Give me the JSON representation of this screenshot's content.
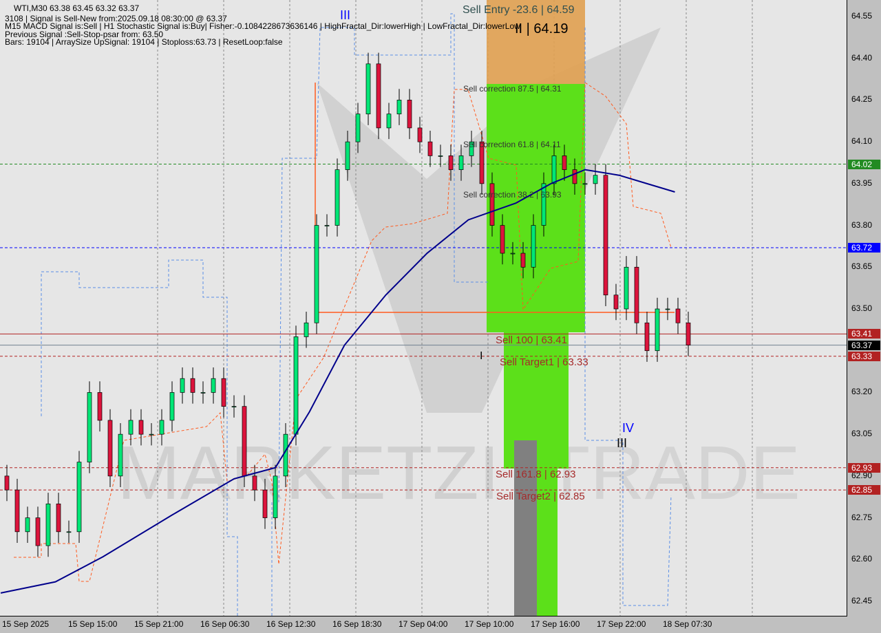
{
  "chart_data": {
    "type": "candlestick",
    "symbol": "WTI,M30",
    "ohlc_header": "63.38 63.45 63.32 63.37",
    "ylim": [
      62.45,
      64.55
    ],
    "yticks": [
      "64.55",
      "64.40",
      "64.25",
      "64.10",
      "63.95",
      "63.80",
      "63.65",
      "63.50",
      "63.20",
      "63.05",
      "62.90",
      "62.75",
      "62.60",
      "62.45"
    ],
    "xticks": [
      "15 Sep 2025",
      "15 Sep 15:00",
      "15 Sep 21:00",
      "16 Sep 06:30",
      "16 Sep 12:30",
      "16 Sep 18:30",
      "17 Sep 04:00",
      "17 Sep 10:00",
      "17 Sep 16:00",
      "17 Sep 22:00",
      "18 Sep 07:30"
    ],
    "closes": [
      62.85,
      62.7,
      62.75,
      62.65,
      62.8,
      62.7,
      62.7,
      62.95,
      63.2,
      63.1,
      62.9,
      63.05,
      63.1,
      63.05,
      63.05,
      63.1,
      63.2,
      63.25,
      63.2,
      63.2,
      63.25,
      63.15,
      63.15,
      62.9,
      62.85,
      62.75,
      62.9,
      63.05,
      63.4,
      63.45,
      63.8,
      63.8,
      64.0,
      64.1,
      64.2,
      64.38,
      64.15,
      64.2,
      64.25,
      64.15,
      64.1,
      64.05,
      64.05,
      64.0,
      64.05,
      64.1,
      63.95,
      63.8,
      63.7,
      63.7,
      63.65,
      63.8,
      63.95,
      64.05,
      64.0,
      63.95,
      63.95,
      63.98,
      63.55,
      63.5,
      63.65,
      63.45,
      63.35,
      63.5,
      63.5,
      63.45,
      63.37
    ],
    "moving_average": [
      [
        -0.6,
        62.48
      ],
      [
        4.7,
        62.52
      ],
      [
        9.3,
        62.61
      ],
      [
        16,
        62.76
      ],
      [
        22,
        62.89
      ],
      [
        26,
        62.93
      ],
      [
        29.3,
        63.13
      ],
      [
        32.7,
        63.37
      ],
      [
        36.7,
        63.55
      ],
      [
        40.7,
        63.7
      ],
      [
        44.7,
        63.82
      ],
      [
        49.3,
        63.88
      ],
      [
        52.7,
        63.95
      ],
      [
        56,
        64.0
      ],
      [
        59.3,
        63.98
      ],
      [
        62,
        63.95
      ],
      [
        64.7,
        63.92
      ]
    ],
    "price_tags": [
      {
        "label": "64.02",
        "price": 64.02,
        "color": "#228b22"
      },
      {
        "label": "63.72",
        "price": 63.72,
        "color": "#0000ff"
      },
      {
        "label": "63.41",
        "price": 63.41,
        "color": "#b22222"
      },
      {
        "label": "63.37",
        "price": 63.37,
        "color": "#000000"
      },
      {
        "label": "63.33",
        "price": 63.33,
        "color": "#b22222"
      },
      {
        "label": "62.93",
        "price": 62.93,
        "color": "#b22222"
      },
      {
        "label": "62.85",
        "price": 62.85,
        "color": "#b22222"
      }
    ],
    "colors": {
      "bull": "#00e676",
      "bear": "#dc143c",
      "ma": "#00008b",
      "zone_entry": "#e0a050",
      "zone_target": "#5ce01a"
    }
  },
  "info": {
    "line1": "WTI,M30  63.38 63.45 63.32 63.37",
    "line2": "3108 | Signal is Sell-New from:2025.09.18 08:30:00 @ 63.37",
    "line3": "M15 MACD Signal is:Sell | H1 Stochastic Signal is:Buy| Fisher:-0.1084228673636146 | HighFractal_Dir:lowerHigh | LowFractal_Dir:lowerLow",
    "line4": "Previous Signal :Sell-Stop-psar from: 63.50",
    "line5": "Bars: 19104 | ArraySize UpSignal: 19104 | Stoploss:63.73 | ResetLoop:false"
  },
  "levels": {
    "sell_entry": "Sell Entry -23.6 | 64.59",
    "wave_ii": "II | 64.19",
    "corr_875": "Sell correction 87.5 | 64.31",
    "corr_618": "Sell correction 61.8 | 64.11",
    "corr_382": "Sell correction 38.2 | 63.93",
    "sell_100": "Sell 100 | 63.41",
    "target1": "Sell Target1 | 63.33",
    "sell_1618": "Sell 161.8 | 62.93",
    "target2": "Sell Target2 | 62.85"
  },
  "waves": {
    "w3_top": "III",
    "w1": "I",
    "w4": "IV",
    "w3": "III"
  }
}
